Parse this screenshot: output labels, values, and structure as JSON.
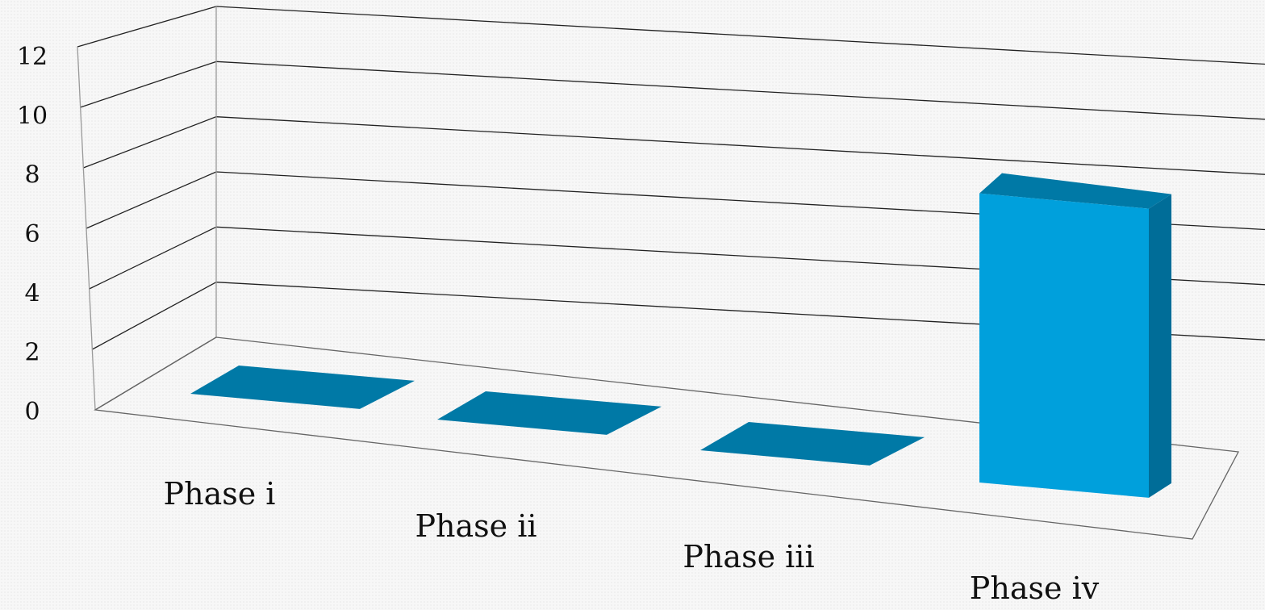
{
  "chart_data": {
    "type": "bar",
    "style": "3d-column",
    "categories": [
      "Phase i",
      "Phase ii",
      "Phase iii",
      "Phase iv"
    ],
    "values": [
      0,
      0,
      0,
      10
    ],
    "title": "",
    "xlabel": "",
    "ylabel": "",
    "ylim": [
      0,
      12
    ],
    "yticks": [
      "0",
      "2",
      "4",
      "6",
      "8",
      "10",
      "12"
    ],
    "grid": true,
    "legend": "none",
    "colors": {
      "bar_front": "#00a0dc",
      "bar_side": "#006d98",
      "bar_top": "#0079a6",
      "gridline": "#222222",
      "floor_edge": "#666666"
    }
  }
}
